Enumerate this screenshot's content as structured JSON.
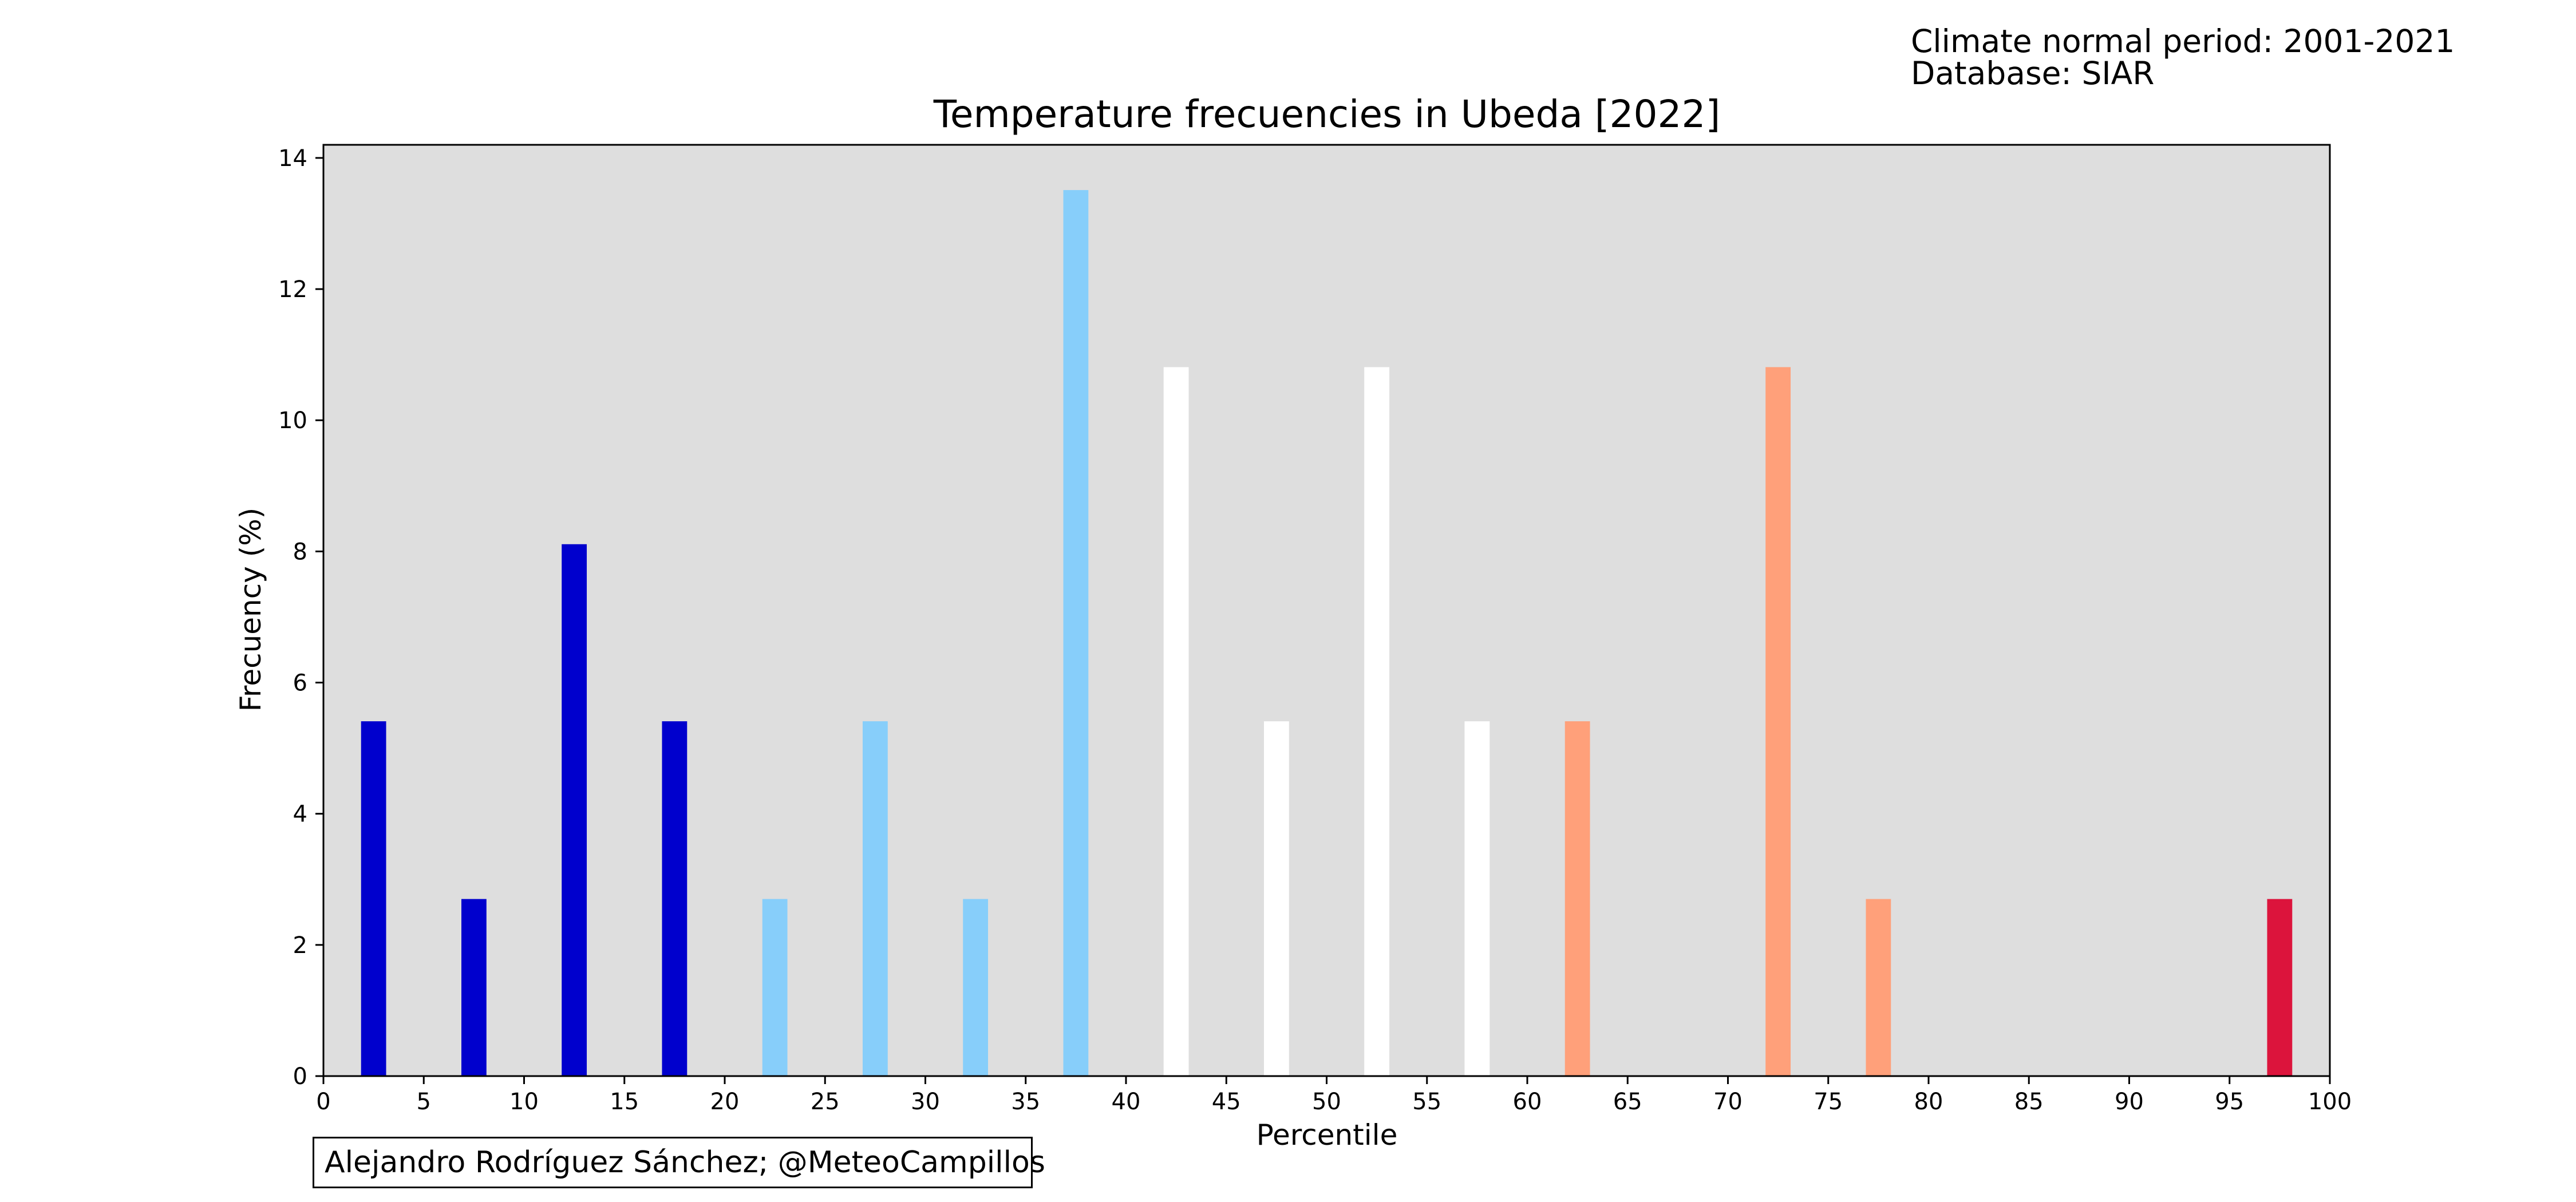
{
  "header": {
    "period_line": "Climate normal period: 2001-2021",
    "database_line": "Database: SIAR"
  },
  "credit": "Alejandro Rodríguez Sánchez; @MeteoCampillos",
  "chart_data": {
    "type": "bar",
    "title": "Temperature frecuencies in Ubeda [2022]",
    "xlabel": "Percentile",
    "ylabel": "Frecuency (%)",
    "xlim": [
      0,
      100
    ],
    "ylim": [
      0,
      14.2
    ],
    "xticks": [
      0,
      5,
      10,
      15,
      20,
      25,
      30,
      35,
      40,
      45,
      50,
      55,
      60,
      65,
      70,
      75,
      80,
      85,
      90,
      95,
      100
    ],
    "yticks": [
      0,
      2,
      4,
      6,
      8,
      10,
      12,
      14
    ],
    "grid": false,
    "plot_background": "#dedede",
    "bars": [
      {
        "x": 2.5,
        "value": 5.41,
        "color": "#0000cd"
      },
      {
        "x": 7.5,
        "value": 2.7,
        "color": "#0000cd"
      },
      {
        "x": 12.5,
        "value": 8.11,
        "color": "#0000cd"
      },
      {
        "x": 17.5,
        "value": 5.41,
        "color": "#0000cd"
      },
      {
        "x": 22.5,
        "value": 2.7,
        "color": "#87cefa"
      },
      {
        "x": 27.5,
        "value": 5.41,
        "color": "#87cefa"
      },
      {
        "x": 32.5,
        "value": 2.7,
        "color": "#87cefa"
      },
      {
        "x": 37.5,
        "value": 13.51,
        "color": "#87cefa"
      },
      {
        "x": 42.5,
        "value": 10.81,
        "color": "#ffffff"
      },
      {
        "x": 47.5,
        "value": 5.41,
        "color": "#ffffff"
      },
      {
        "x": 52.5,
        "value": 10.81,
        "color": "#ffffff"
      },
      {
        "x": 57.5,
        "value": 5.41,
        "color": "#ffffff"
      },
      {
        "x": 62.5,
        "value": 5.41,
        "color": "#ffa07a"
      },
      {
        "x": 67.5,
        "value": 0,
        "color": "#ffa07a"
      },
      {
        "x": 72.5,
        "value": 10.81,
        "color": "#ffa07a"
      },
      {
        "x": 77.5,
        "value": 2.7,
        "color": "#ffa07a"
      },
      {
        "x": 82.5,
        "value": 0,
        "color": "#dc143c"
      },
      {
        "x": 87.5,
        "value": 0,
        "color": "#dc143c"
      },
      {
        "x": 92.5,
        "value": 0,
        "color": "#dc143c"
      },
      {
        "x": 97.5,
        "value": 2.7,
        "color": "#dc143c"
      }
    ],
    "bar_width": 1.25
  }
}
